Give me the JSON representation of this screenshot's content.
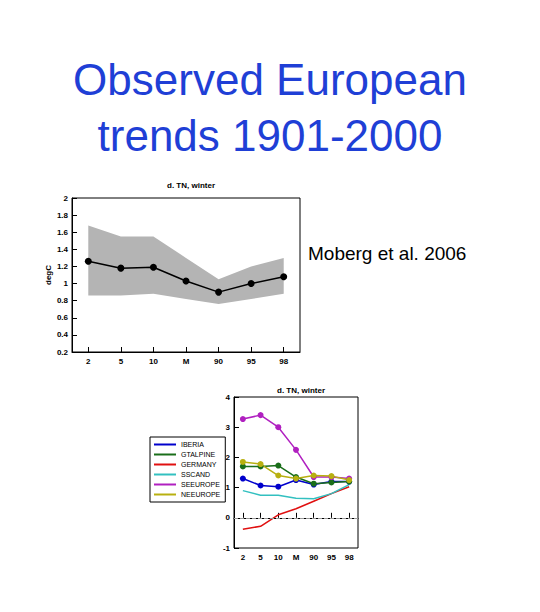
{
  "title": "Observed European trends 1901-2000",
  "annotation": "Moberg et al. 2006",
  "chart_data": [
    {
      "type": "line",
      "title": "d. TN, winter",
      "y_label": "degC",
      "categories": [
        "2",
        "5",
        "10",
        "M",
        "90",
        "95",
        "98"
      ],
      "values": [
        1.26,
        1.18,
        1.19,
        1.03,
        0.9,
        1.0,
        1.08
      ],
      "color": "#000000",
      "marker": "circle",
      "line_style": "solid",
      "band": {
        "lower": [
          0.86,
          0.86,
          0.88,
          0.82,
          0.76,
          0.82,
          0.88
        ],
        "upper": [
          1.68,
          1.55,
          1.55,
          1.3,
          1.05,
          1.2,
          1.3
        ],
        "color": "#b4b4b4"
      },
      "ylim": [
        0.2,
        2
      ],
      "yticks": [
        0.2,
        0.4,
        0.6,
        0.8,
        1,
        1.2,
        1.4,
        1.6,
        1.8,
        2
      ]
    },
    {
      "type": "line",
      "title": "d. TN, winter",
      "y_label": "degC",
      "categories": [
        "2",
        "5",
        "10",
        "M",
        "90",
        "95",
        "98"
      ],
      "series": [
        {
          "name": "IBERIA",
          "color": "#0000cc",
          "marker": "circle",
          "line_style": "solid",
          "values": [
            1.3,
            1.07,
            1.03,
            1.25,
            1.1,
            1.2,
            1.2
          ]
        },
        {
          "name": "GTALPINE",
          "color": "#1a6e1a",
          "marker": "circle",
          "line_style": "solid",
          "values": [
            1.7,
            1.7,
            1.73,
            1.35,
            1.13,
            1.17,
            1.2
          ]
        },
        {
          "name": "GERMANY",
          "color": "#e01010",
          "marker": "none",
          "line_style": "solid",
          "values": [
            -0.38,
            -0.28,
            0.1,
            0.3,
            0.55,
            0.8,
            1.03
          ]
        },
        {
          "name": "SSCAND",
          "color": "#33c0c0",
          "marker": "none",
          "line_style": "solid",
          "values": [
            0.9,
            0.75,
            0.75,
            0.65,
            0.63,
            0.8,
            1.1
          ]
        },
        {
          "name": "SEEUROPE",
          "color": "#b020c0",
          "marker": "circle",
          "line_style": "solid",
          "values": [
            3.27,
            3.4,
            3.0,
            2.25,
            1.35,
            1.35,
            1.3
          ]
        },
        {
          "name": "NEEUROPE",
          "color": "#b8b010",
          "marker": "circle",
          "line_style": "solid",
          "values": [
            1.85,
            1.78,
            1.4,
            1.3,
            1.4,
            1.38,
            1.25
          ]
        }
      ],
      "reference_lines": [
        {
          "value": 0,
          "line_style": "dashed",
          "color": "#999999"
        }
      ],
      "legend": "left",
      "ylim": [
        -1,
        4
      ],
      "yticks": [
        -1,
        0,
        1,
        2,
        3,
        4
      ]
    }
  ]
}
